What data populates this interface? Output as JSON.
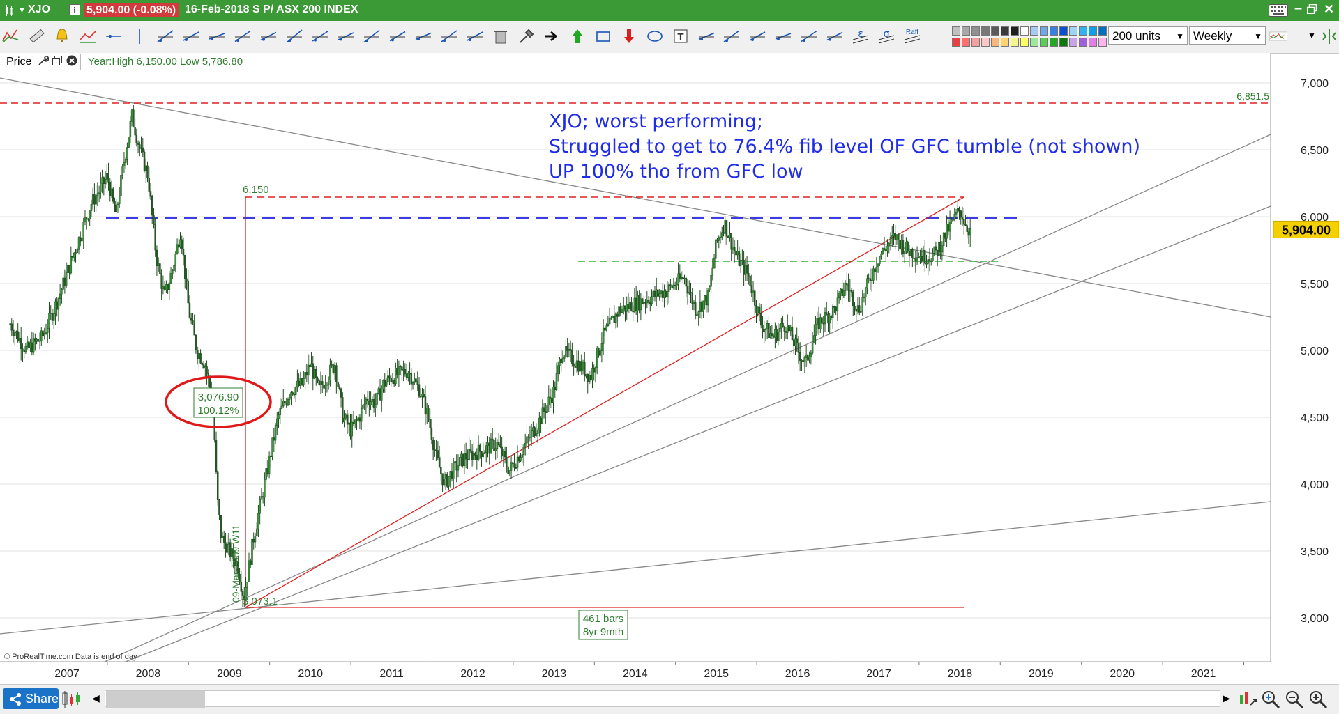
{
  "window": {
    "symbol": "XJO",
    "price_badge": "5,904.00 (-0.08%)",
    "title": "16-Feb-2018 S P/ ASX 200 INDEX"
  },
  "toolbar": {
    "units_value": "200 units",
    "timeframe_value": "Weekly",
    "colors": [
      "#c0c0c0",
      "#a8a8a8",
      "#909090",
      "#787878",
      "#5a5a5a",
      "#3a3a3a",
      "#1e1e1e",
      "#ffffff",
      "#a7c9f2",
      "#6fa8e8",
      "#3a7fe0",
      "#0a4fd0",
      "#9fd4f5",
      "#33b3ee",
      "#0f9ee8",
      "#0070c0",
      "#e84040",
      "#ff6f6f",
      "#f2a0a0",
      "#ffc7c7",
      "#f7b77a",
      "#ffd36e",
      "#f5f58a",
      "#ffff66",
      "#9ee89e",
      "#55cf55",
      "#23a823",
      "#0a7a0a",
      "#c9a3e8",
      "#a060d8",
      "#e080e8",
      "#ffb6ef"
    ],
    "raff_label": "Raff"
  },
  "price_panel": {
    "label": "Price",
    "year_info": "Year:High 6,150.00 Low 5,786.80"
  },
  "chart_data": {
    "type": "candlestick",
    "instrument": "XJO",
    "timeframe": "Weekly",
    "last_price": "5,904.00",
    "x_ticks": [
      "2007",
      "2008",
      "2009",
      "2010",
      "2011",
      "2012",
      "2013",
      "2014",
      "2015",
      "2016",
      "2017",
      "2018",
      "2019",
      "2020",
      "2021"
    ],
    "y_ticks": [
      "7,000",
      "6,500",
      "6,000",
      "5,500",
      "5,000",
      "4,500",
      "4,000",
      "3,500",
      "3,000"
    ],
    "ylim": [
      2830,
      7090
    ],
    "xlim": [
      2006.25,
      2021.85
    ],
    "approx_weekly_closes": [
      [
        2006.3,
        5200
      ],
      [
        2006.5,
        5000
      ],
      [
        2006.7,
        5100
      ],
      [
        2006.9,
        5400
      ],
      [
        2007.1,
        5750
      ],
      [
        2007.3,
        6100
      ],
      [
        2007.5,
        6300
      ],
      [
        2007.6,
        6000
      ],
      [
        2007.7,
        6400
      ],
      [
        2007.8,
        6750
      ],
      [
        2007.9,
        6500
      ],
      [
        2008.0,
        6300
      ],
      [
        2008.1,
        5700
      ],
      [
        2008.2,
        5400
      ],
      [
        2008.3,
        5600
      ],
      [
        2008.4,
        5900
      ],
      [
        2008.5,
        5300
      ],
      [
        2008.6,
        5000
      ],
      [
        2008.7,
        4900
      ],
      [
        2008.8,
        4600
      ],
      [
        2008.85,
        3900
      ],
      [
        2008.9,
        3600
      ],
      [
        2009.0,
        3500
      ],
      [
        2009.1,
        3400
      ],
      [
        2009.18,
        3150
      ],
      [
        2009.3,
        3600
      ],
      [
        2009.4,
        3900
      ],
      [
        2009.5,
        4200
      ],
      [
        2009.6,
        4500
      ],
      [
        2009.75,
        4700
      ],
      [
        2009.9,
        4750
      ],
      [
        2010.0,
        4900
      ],
      [
        2010.1,
        4700
      ],
      [
        2010.3,
        4900
      ],
      [
        2010.4,
        4500
      ],
      [
        2010.5,
        4400
      ],
      [
        2010.6,
        4500
      ],
      [
        2010.7,
        4650
      ],
      [
        2010.8,
        4600
      ],
      [
        2010.9,
        4750
      ],
      [
        2011.0,
        4800
      ],
      [
        2011.2,
        4850
      ],
      [
        2011.35,
        4700
      ],
      [
        2011.45,
        4500
      ],
      [
        2011.55,
        4200
      ],
      [
        2011.65,
        4000
      ],
      [
        2011.75,
        4100
      ],
      [
        2011.9,
        4200
      ],
      [
        2012.1,
        4250
      ],
      [
        2012.3,
        4300
      ],
      [
        2012.45,
        4100
      ],
      [
        2012.6,
        4250
      ],
      [
        2012.8,
        4450
      ],
      [
        2013.0,
        4700
      ],
      [
        2013.1,
        5000
      ],
      [
        2013.3,
        4900
      ],
      [
        2013.45,
        4800
      ],
      [
        2013.6,
        5100
      ],
      [
        2013.8,
        5300
      ],
      [
        2014.0,
        5350
      ],
      [
        2014.2,
        5400
      ],
      [
        2014.4,
        5450
      ],
      [
        2014.6,
        5550
      ],
      [
        2014.75,
        5300
      ],
      [
        2014.9,
        5400
      ],
      [
        2015.0,
        5800
      ],
      [
        2015.1,
        5950
      ],
      [
        2015.25,
        5700
      ],
      [
        2015.4,
        5550
      ],
      [
        2015.55,
        5200
      ],
      [
        2015.7,
        5100
      ],
      [
        2015.85,
        5200
      ],
      [
        2016.0,
        5000
      ],
      [
        2016.1,
        4900
      ],
      [
        2016.25,
        5200
      ],
      [
        2016.45,
        5300
      ],
      [
        2016.6,
        5500
      ],
      [
        2016.75,
        5300
      ],
      [
        2016.9,
        5550
      ],
      [
        2017.0,
        5700
      ],
      [
        2017.2,
        5850
      ],
      [
        2017.35,
        5750
      ],
      [
        2017.55,
        5700
      ],
      [
        2017.7,
        5720
      ],
      [
        2017.85,
        5900
      ],
      [
        2018.0,
        6050
      ],
      [
        2018.1,
        5904
      ]
    ],
    "annotations": {
      "text_lines": [
        "XJO; worst performing;",
        "Struggled to get to 76.4% fib level OF GFC tumble (not shown)",
        "UP 100% tho from GFC low"
      ],
      "resistance_label": "6,851.5",
      "high_label": "6,150",
      "retrace_box": [
        "3,076.90",
        "100.12%"
      ],
      "low_label": "3,073.1",
      "date_label": "09-Mar-2009 W11",
      "bars_box": [
        "461 bars",
        "8yr 9mth"
      ],
      "copyright": "© ProRealTime.com  Data is end of day"
    },
    "horizontal_levels": [
      {
        "value": 6851.5,
        "style": "dashed",
        "color": "#e02020"
      },
      {
        "value": 6150,
        "style": "dashed",
        "color": "#e02020"
      },
      {
        "value": 6000,
        "style": "dashed",
        "color": "#2020e0"
      },
      {
        "value": 5680,
        "style": "dashed",
        "color": "#30b030"
      }
    ],
    "grid": true
  },
  "statusbar": {
    "share_label": "Share"
  }
}
